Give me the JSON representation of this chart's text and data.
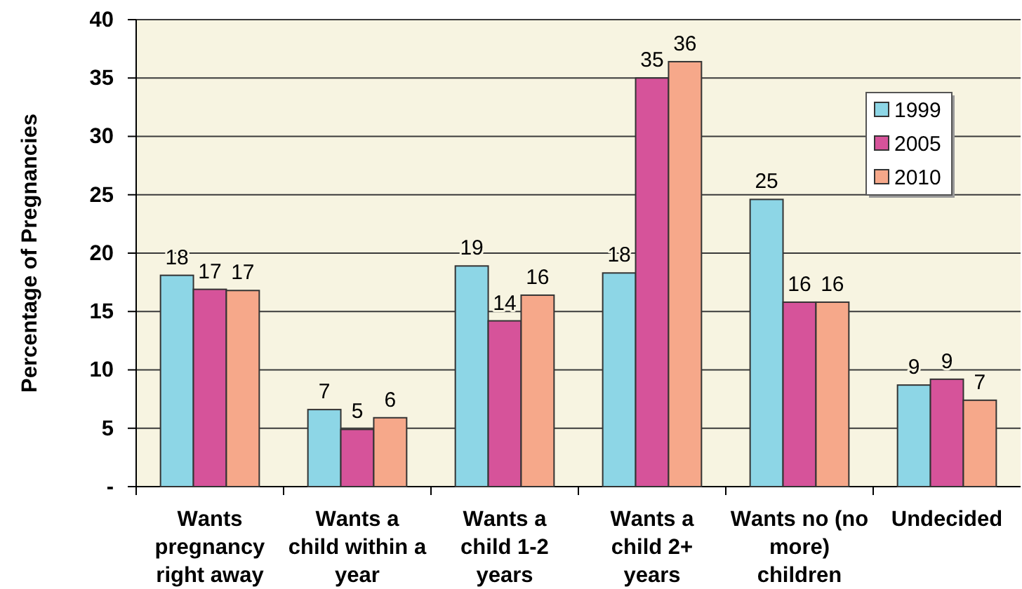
{
  "chart_data": {
    "type": "bar",
    "ylabel": "Percentage of Pregnancies",
    "categories": [
      "Wants pregnancy right away",
      "Wants a child within a year",
      "Wants a child 1-2 years",
      "Wants a child 2+ years",
      "Wants no (no more) children",
      "Undecided"
    ],
    "series": [
      {
        "name": "1999",
        "color": "#8dd6e6",
        "values": [
          18.1,
          6.6,
          18.9,
          18.3,
          24.6,
          8.7
        ],
        "value_labels": [
          "18",
          "7",
          "19",
          "18",
          "25",
          "9"
        ]
      },
      {
        "name": "2005",
        "color": "#d6539a",
        "values": [
          16.9,
          4.9,
          14.2,
          35.0,
          15.8,
          9.2
        ],
        "value_labels": [
          "17",
          "5",
          "14",
          "35",
          "16",
          "9"
        ]
      },
      {
        "name": "2010",
        "color": "#f6a88a",
        "values": [
          16.8,
          5.9,
          16.4,
          36.4,
          15.8,
          7.4
        ],
        "value_labels": [
          "17",
          "6",
          "16",
          "36",
          "16",
          "7"
        ]
      }
    ],
    "ylim": [
      0,
      40
    ],
    "yticks": [
      {
        "value": 0,
        "label": "-"
      },
      5,
      10,
      15,
      20,
      25,
      30,
      35,
      40
    ],
    "grid": "y",
    "legend": "top right"
  }
}
